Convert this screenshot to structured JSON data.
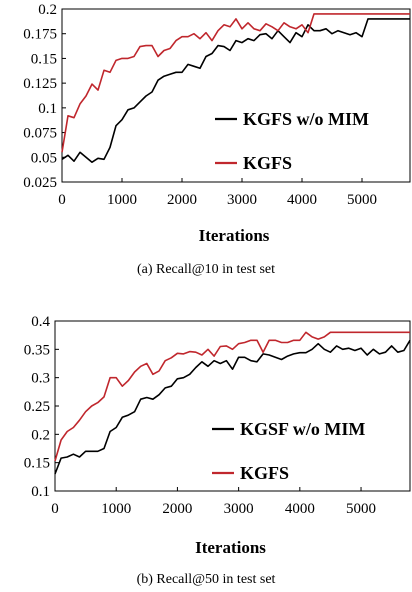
{
  "colors": {
    "kgfs": "#c0272d",
    "baseline": "#000000"
  },
  "chart_data": [
    {
      "type": "line",
      "caption": "(a)  Recall@10 in test set",
      "xlabel": "Iterations",
      "ylabel": "",
      "xlim": [
        0,
        5800
      ],
      "ylim": [
        0.025,
        0.2
      ],
      "xticks": [
        "0",
        "1000",
        "2000",
        "3000",
        "4000",
        "5000"
      ],
      "xtick_values": [
        0,
        1000,
        2000,
        3000,
        4000,
        5000
      ],
      "yticks": [
        "0.025",
        "0.05",
        "0.075",
        "0.1",
        "0.125",
        "0.15",
        "0.175",
        "0.2"
      ],
      "ytick_values": [
        0.025,
        0.05,
        0.075,
        0.1,
        0.125,
        0.15,
        0.175,
        0.2
      ],
      "grid": false,
      "legend_position": "bottom-right",
      "series": [
        {
          "name": "KGFS w/o MIM",
          "color": "baseline",
          "x": [
            0,
            100,
            200,
            300,
            400,
            500,
            600,
            700,
            800,
            900,
            1000,
            1100,
            1200,
            1300,
            1400,
            1500,
            1600,
            1700,
            1800,
            1900,
            2000,
            2100,
            2200,
            2300,
            2400,
            2500,
            2600,
            2700,
            2800,
            2900,
            3000,
            3100,
            3200,
            3300,
            3400,
            3500,
            3600,
            3700,
            3800,
            3900,
            4000,
            4100,
            4200,
            4300,
            4400,
            4500,
            4600,
            4700,
            4800,
            4900,
            5000,
            5100,
            5200,
            5300,
            5400,
            5500,
            5600,
            5700,
            5800
          ],
          "values": [
            0.048,
            0.052,
            0.046,
            0.055,
            0.05,
            0.045,
            0.049,
            0.048,
            0.06,
            0.082,
            0.088,
            0.098,
            0.1,
            0.106,
            0.112,
            0.116,
            0.128,
            0.132,
            0.134,
            0.136,
            0.136,
            0.144,
            0.142,
            0.14,
            0.152,
            0.155,
            0.163,
            0.162,
            0.158,
            0.168,
            0.166,
            0.17,
            0.168,
            0.174,
            0.175,
            0.17,
            0.178,
            0.172,
            0.166,
            0.176,
            0.172,
            0.184,
            0.178,
            0.178,
            0.18,
            0.175,
            0.178,
            0.176,
            0.174,
            0.176,
            0.172,
            0.19,
            0.19,
            0.19,
            0.19,
            0.19,
            0.19,
            0.19,
            0.19
          ]
        },
        {
          "name": "KGFS",
          "color": "kgfs",
          "x": [
            0,
            100,
            200,
            300,
            400,
            500,
            600,
            700,
            800,
            900,
            1000,
            1100,
            1200,
            1300,
            1400,
            1500,
            1600,
            1700,
            1800,
            1900,
            2000,
            2100,
            2200,
            2300,
            2400,
            2500,
            2600,
            2700,
            2800,
            2900,
            3000,
            3100,
            3200,
            3300,
            3400,
            3500,
            3600,
            3700,
            3800,
            3900,
            4000,
            4100,
            4200,
            4300,
            4400,
            4500,
            4600,
            4700,
            4800,
            4900,
            5000,
            5100,
            5200,
            5300,
            5400,
            5500,
            5600,
            5700,
            5800
          ],
          "values": [
            0.055,
            0.092,
            0.09,
            0.104,
            0.112,
            0.124,
            0.118,
            0.138,
            0.136,
            0.148,
            0.15,
            0.15,
            0.152,
            0.162,
            0.163,
            0.163,
            0.152,
            0.158,
            0.16,
            0.168,
            0.172,
            0.172,
            0.175,
            0.17,
            0.176,
            0.168,
            0.178,
            0.184,
            0.182,
            0.19,
            0.18,
            0.186,
            0.18,
            0.178,
            0.185,
            0.182,
            0.178,
            0.186,
            0.182,
            0.18,
            0.184,
            0.176,
            0.195,
            0.195,
            0.195,
            0.195,
            0.195,
            0.195,
            0.195,
            0.195,
            0.195,
            0.195,
            0.195,
            0.195,
            0.195,
            0.195,
            0.195,
            0.195,
            0.195
          ]
        }
      ]
    },
    {
      "type": "line",
      "caption": "(b)  Recall@50 in test set",
      "xlabel": "Iterations",
      "ylabel": "",
      "xlim": [
        0,
        5800
      ],
      "ylim": [
        0.1,
        0.4
      ],
      "xticks": [
        "0",
        "1000",
        "2000",
        "3000",
        "4000",
        "5000"
      ],
      "xtick_values": [
        0,
        1000,
        2000,
        3000,
        4000,
        5000
      ],
      "yticks": [
        "0.1",
        "0.15",
        "0.2",
        "0.25",
        "0.3",
        "0.35",
        "0.4"
      ],
      "ytick_values": [
        0.1,
        0.15,
        0.2,
        0.25,
        0.3,
        0.35,
        0.4
      ],
      "grid": false,
      "legend_position": "bottom-right",
      "series": [
        {
          "name": "KGSF w/o MIM",
          "color": "baseline",
          "x": [
            0,
            100,
            200,
            300,
            400,
            500,
            600,
            700,
            800,
            900,
            1000,
            1100,
            1200,
            1300,
            1400,
            1500,
            1600,
            1700,
            1800,
            1900,
            2000,
            2100,
            2200,
            2300,
            2400,
            2500,
            2600,
            2700,
            2800,
            2900,
            3000,
            3100,
            3200,
            3300,
            3400,
            3500,
            3600,
            3700,
            3800,
            3900,
            4000,
            4100,
            4200,
            4300,
            4400,
            4500,
            4600,
            4700,
            4800,
            4900,
            5000,
            5100,
            5200,
            5300,
            5400,
            5500,
            5600,
            5700,
            5800
          ],
          "values": [
            0.13,
            0.158,
            0.16,
            0.165,
            0.16,
            0.17,
            0.17,
            0.17,
            0.175,
            0.205,
            0.212,
            0.23,
            0.234,
            0.24,
            0.262,
            0.265,
            0.262,
            0.27,
            0.282,
            0.285,
            0.298,
            0.3,
            0.306,
            0.318,
            0.328,
            0.32,
            0.33,
            0.325,
            0.33,
            0.315,
            0.336,
            0.336,
            0.33,
            0.328,
            0.342,
            0.34,
            0.336,
            0.332,
            0.338,
            0.342,
            0.344,
            0.344,
            0.35,
            0.36,
            0.35,
            0.345,
            0.356,
            0.35,
            0.352,
            0.348,
            0.352,
            0.34,
            0.35,
            0.342,
            0.345,
            0.356,
            0.345,
            0.348,
            0.366
          ]
        },
        {
          "name": "KGFS",
          "color": "kgfs",
          "x": [
            0,
            100,
            200,
            300,
            400,
            500,
            600,
            700,
            800,
            900,
            1000,
            1100,
            1200,
            1300,
            1400,
            1500,
            1600,
            1700,
            1800,
            1900,
            2000,
            2100,
            2200,
            2300,
            2400,
            2500,
            2600,
            2700,
            2800,
            2900,
            3000,
            3100,
            3200,
            3300,
            3400,
            3500,
            3600,
            3700,
            3800,
            3900,
            4000,
            4100,
            4200,
            4300,
            4400,
            4500,
            4600,
            4700,
            4800,
            4900,
            5000,
            5100,
            5200,
            5300,
            5400,
            5500,
            5600,
            5700,
            5800
          ],
          "values": [
            0.153,
            0.19,
            0.205,
            0.212,
            0.225,
            0.24,
            0.25,
            0.256,
            0.266,
            0.3,
            0.3,
            0.285,
            0.295,
            0.31,
            0.32,
            0.325,
            0.306,
            0.312,
            0.33,
            0.335,
            0.343,
            0.342,
            0.346,
            0.345,
            0.34,
            0.35,
            0.338,
            0.355,
            0.356,
            0.35,
            0.36,
            0.362,
            0.366,
            0.366,
            0.345,
            0.366,
            0.366,
            0.362,
            0.362,
            0.366,
            0.366,
            0.38,
            0.372,
            0.368,
            0.372,
            0.38,
            0.38,
            0.38,
            0.38,
            0.38,
            0.38,
            0.38,
            0.38,
            0.38,
            0.38,
            0.38,
            0.38,
            0.38,
            0.38
          ]
        }
      ]
    }
  ]
}
